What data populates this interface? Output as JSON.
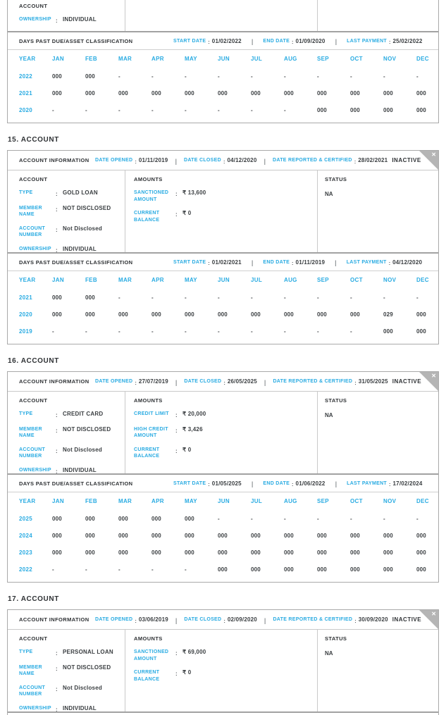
{
  "colors": {
    "accent": "#29abe2",
    "text": "#33373a",
    "border": "#a9a9a9",
    "divider": "#c9c9c9",
    "ribbon": "#b5b5b5"
  },
  "icons": {
    "close_glyph": "✕"
  },
  "labels": {
    "account_info": "ACCOUNT INFORMATION",
    "date_opened": "DATE OPENED",
    "date_closed": "DATE CLOSED",
    "date_reported": "DATE REPORTED & CERTIFIED",
    "account": "ACCOUNT",
    "amounts": "AMOUNTS",
    "status": "STATUS",
    "dpd_title": "DAYS PAST DUE/ASSET CLASSIFICATION",
    "start_date": "START DATE",
    "end_date": "END DATE",
    "last_payment": "LAST PAYMENT"
  },
  "dpd_columns": [
    "YEAR",
    "JAN",
    "FEB",
    "MAR",
    "APR",
    "MAY",
    "JUN",
    "JUL",
    "AUG",
    "SEP",
    "OCT",
    "NOV",
    "DEC"
  ],
  "partial_card": {
    "account_fields": [
      {
        "label": "OWNERSHIP",
        "value": "INDIVIDUAL"
      }
    ],
    "dpd": {
      "start_date": "01/02/2022",
      "end_date": "01/09/2020",
      "last_payment": "25/02/2022",
      "rows": [
        {
          "year": "2022",
          "values": [
            "000",
            "000",
            "-",
            "-",
            "-",
            "-",
            "-",
            "-",
            "-",
            "-",
            "-",
            "-"
          ]
        },
        {
          "year": "2021",
          "values": [
            "000",
            "000",
            "000",
            "000",
            "000",
            "000",
            "000",
            "000",
            "000",
            "000",
            "000",
            "000"
          ]
        },
        {
          "year": "2020",
          "values": [
            "-",
            "-",
            "-",
            "-",
            "-",
            "-",
            "-",
            "-",
            "000",
            "000",
            "000",
            "000"
          ]
        }
      ]
    }
  },
  "accounts": [
    {
      "title": "15. ACCOUNT",
      "date_opened": "01/11/2019",
      "date_closed": "04/12/2020",
      "date_reported": "28/02/2021",
      "badge": "INACTIVE",
      "account_fields": [
        {
          "label": "TYPE",
          "value": "GOLD LOAN"
        },
        {
          "label": "MEMBER NAME",
          "value": "NOT DISCLOSED"
        },
        {
          "label": "ACCOUNT NUMBER",
          "value": "Not Disclosed"
        },
        {
          "label": "OWNERSHIP",
          "value": "INDIVIDUAL"
        }
      ],
      "amount_fields": [
        {
          "label": "SANCTIONED AMOUNT",
          "value": "₹ 13,600"
        },
        {
          "label": "CURRENT BALANCE",
          "value": "₹ 0"
        }
      ],
      "status": "NA",
      "dpd": {
        "start_date": "01/02/2021",
        "end_date": "01/11/2019",
        "last_payment": "04/12/2020",
        "rows": [
          {
            "year": "2021",
            "values": [
              "000",
              "000",
              "-",
              "-",
              "-",
              "-",
              "-",
              "-",
              "-",
              "-",
              "-",
              "-"
            ]
          },
          {
            "year": "2020",
            "values": [
              "000",
              "000",
              "000",
              "000",
              "000",
              "000",
              "000",
              "000",
              "000",
              "000",
              "029",
              "000"
            ]
          },
          {
            "year": "2019",
            "values": [
              "-",
              "-",
              "-",
              "-",
              "-",
              "-",
              "-",
              "-",
              "-",
              "-",
              "000",
              "000"
            ]
          }
        ]
      }
    },
    {
      "title": "16. ACCOUNT",
      "date_opened": "27/07/2019",
      "date_closed": "26/05/2025",
      "date_reported": "31/05/2025",
      "badge": "INACTIVE",
      "account_fields": [
        {
          "label": "TYPE",
          "value": "CREDIT CARD"
        },
        {
          "label": "MEMBER NAME",
          "value": "NOT DISCLOSED"
        },
        {
          "label": "ACCOUNT NUMBER",
          "value": "Not Disclosed"
        },
        {
          "label": "OWNERSHIP",
          "value": "INDIVIDUAL"
        }
      ],
      "amount_fields": [
        {
          "label": "CREDIT LIMIT",
          "value": "₹ 20,000"
        },
        {
          "label": "HIGH CREDIT AMOUNT",
          "value": "₹ 3,426"
        },
        {
          "label": "CURRENT BALANCE",
          "value": "₹ 0"
        }
      ],
      "status": "NA",
      "dpd": {
        "start_date": "01/05/2025",
        "end_date": "01/06/2022",
        "last_payment": "17/02/2024",
        "rows": [
          {
            "year": "2025",
            "values": [
              "000",
              "000",
              "000",
              "000",
              "000",
              "-",
              "-",
              "-",
              "-",
              "-",
              "-",
              "-"
            ]
          },
          {
            "year": "2024",
            "values": [
              "000",
              "000",
              "000",
              "000",
              "000",
              "000",
              "000",
              "000",
              "000",
              "000",
              "000",
              "000"
            ]
          },
          {
            "year": "2023",
            "values": [
              "000",
              "000",
              "000",
              "000",
              "000",
              "000",
              "000",
              "000",
              "000",
              "000",
              "000",
              "000"
            ]
          },
          {
            "year": "2022",
            "values": [
              "-",
              "-",
              "-",
              "-",
              "-",
              "000",
              "000",
              "000",
              "000",
              "000",
              "000",
              "000"
            ]
          }
        ]
      }
    },
    {
      "title": "17. ACCOUNT",
      "date_opened": "03/06/2019",
      "date_closed": "02/09/2020",
      "date_reported": "30/09/2020",
      "badge": "INACTIVE",
      "account_fields": [
        {
          "label": "TYPE",
          "value": "PERSONAL LOAN"
        },
        {
          "label": "MEMBER NAME",
          "value": "NOT DISCLOSED"
        },
        {
          "label": "ACCOUNT NUMBER",
          "value": "Not Disclosed"
        },
        {
          "label": "OWNERSHIP",
          "value": "INDIVIDUAL"
        }
      ],
      "amount_fields": [
        {
          "label": "SANCTIONED AMOUNT",
          "value": "₹ 69,000"
        },
        {
          "label": "CURRENT BALANCE",
          "value": "₹ 0"
        }
      ],
      "status": "NA"
    }
  ]
}
